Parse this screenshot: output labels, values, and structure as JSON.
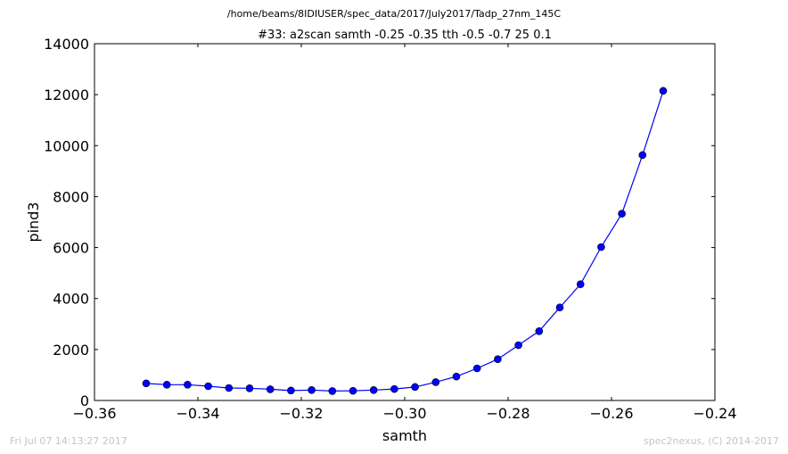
{
  "figure": {
    "suptitle": "/home/beams/8IDIUSER/spec_data/2017/July2017/Tadp_27nm_145C",
    "footer_left": "Fri Jul 07 14:13:27 2017",
    "footer_right": "spec2nexus, (C) 2014-2017"
  },
  "chart_data": {
    "type": "line",
    "title": "#33: a2scan  samth -0.25 -0.35  tth -0.5 -0.7  25 0.1",
    "xlabel": "samth",
    "ylabel": "pind3",
    "xlim": [
      -0.36,
      -0.24
    ],
    "ylim": [
      0,
      14000
    ],
    "xticks": [
      -0.36,
      -0.34,
      -0.32,
      -0.3,
      -0.28,
      -0.26,
      -0.24
    ],
    "xtick_labels": [
      "−0.36",
      "−0.34",
      "−0.32",
      "−0.30",
      "−0.28",
      "−0.26",
      "−0.24"
    ],
    "yticks": [
      0,
      2000,
      4000,
      6000,
      8000,
      10000,
      12000,
      14000
    ],
    "ytick_labels": [
      "0",
      "2000",
      "4000",
      "6000",
      "8000",
      "10000",
      "12000",
      "14000"
    ],
    "grid": false,
    "color": "#0000ff",
    "marker": "circle",
    "series": [
      {
        "x": [
          -0.35,
          -0.346,
          -0.342,
          -0.338,
          -0.334,
          -0.33,
          -0.326,
          -0.322,
          -0.318,
          -0.314,
          -0.31,
          -0.306,
          -0.302,
          -0.298,
          -0.294,
          -0.29,
          -0.286,
          -0.282,
          -0.278,
          -0.274,
          -0.27,
          -0.266,
          -0.262,
          -0.258,
          -0.254,
          -0.25
        ],
        "y": [
          670,
          620,
          620,
          560,
          490,
          480,
          440,
          390,
          410,
          370,
          380,
          410,
          450,
          530,
          720,
          940,
          1260,
          1620,
          2170,
          2720,
          3650,
          4560,
          6020,
          7330,
          9630,
          12150
        ]
      }
    ]
  }
}
